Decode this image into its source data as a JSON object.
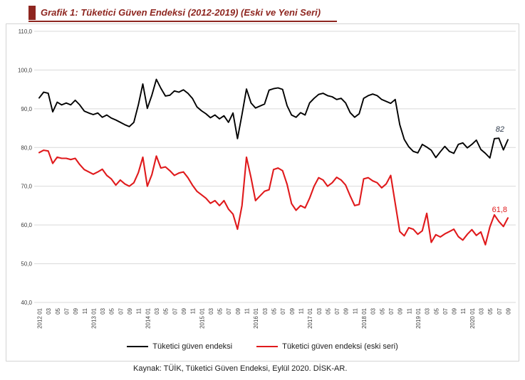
{
  "title": {
    "text": "Grafik 1: Tüketici Güven Endeksi (2012-2019) (Eski ve Yeni Seri)"
  },
  "source": {
    "text": "Kaynak: TÜİK, Tüketici Güven Endeksi, Eylül 2020. DİSK-AR."
  },
  "colors": {
    "title": "#8e2620",
    "axis_text": "#404040",
    "grid": "#d9d9d9",
    "box_border": "#d4d4d4",
    "annotation_new": "#2f3b4c"
  },
  "chart_data": {
    "type": "line",
    "title": "Grafik 1: Tüketici Güven Endeksi (2012-2019) (Eski ve Yeni Seri)",
    "ylim": [
      40,
      110
    ],
    "grid": true,
    "legend_position": "bottom",
    "y_tick_labels": [
      "110,0",
      "100,0",
      "90,0",
      "80,0",
      "70,0",
      "60,0",
      "50,0",
      "40,0"
    ],
    "x_tick_labels": [
      "2012 01",
      "03",
      "05",
      "07",
      "09",
      "11",
      "2013 01",
      "03",
      "05",
      "07",
      "09",
      "11",
      "2014 01",
      "03",
      "05",
      "07",
      "09",
      "11",
      "2015 01",
      "03",
      "05",
      "07",
      "09",
      "11",
      "2016 01",
      "03",
      "05",
      "07",
      "09",
      "11",
      "2017 01",
      "03",
      "05",
      "07",
      "09",
      "11",
      "2018 01",
      "03",
      "05",
      "07",
      "09",
      "11",
      "2019 01",
      "03",
      "05",
      "07",
      "09",
      "11",
      "2020 01",
      "03",
      "05",
      "07",
      "09"
    ],
    "x": [
      "2012-01",
      "2012-02",
      "2012-03",
      "2012-04",
      "2012-05",
      "2012-06",
      "2012-07",
      "2012-08",
      "2012-09",
      "2012-10",
      "2012-11",
      "2012-12",
      "2013-01",
      "2013-02",
      "2013-03",
      "2013-04",
      "2013-05",
      "2013-06",
      "2013-07",
      "2013-08",
      "2013-09",
      "2013-10",
      "2013-11",
      "2013-12",
      "2014-01",
      "2014-02",
      "2014-03",
      "2014-04",
      "2014-05",
      "2014-06",
      "2014-07",
      "2014-08",
      "2014-09",
      "2014-10",
      "2014-11",
      "2014-12",
      "2015-01",
      "2015-02",
      "2015-03",
      "2015-04",
      "2015-05",
      "2015-06",
      "2015-07",
      "2015-08",
      "2015-09",
      "2015-10",
      "2015-11",
      "2015-12",
      "2016-01",
      "2016-02",
      "2016-03",
      "2016-04",
      "2016-05",
      "2016-06",
      "2016-07",
      "2016-08",
      "2016-09",
      "2016-10",
      "2016-11",
      "2016-12",
      "2017-01",
      "2017-02",
      "2017-03",
      "2017-04",
      "2017-05",
      "2017-06",
      "2017-07",
      "2017-08",
      "2017-09",
      "2017-10",
      "2017-11",
      "2017-12",
      "2018-01",
      "2018-02",
      "2018-03",
      "2018-04",
      "2018-05",
      "2018-06",
      "2018-07",
      "2018-08",
      "2018-09",
      "2018-10",
      "2018-11",
      "2018-12",
      "2019-01",
      "2019-02",
      "2019-03",
      "2019-04",
      "2019-05",
      "2019-06",
      "2019-07",
      "2019-08",
      "2019-09",
      "2019-10",
      "2019-11",
      "2019-12",
      "2020-01",
      "2020-02",
      "2020-03",
      "2020-04",
      "2020-05",
      "2020-06",
      "2020-07",
      "2020-08",
      "2020-09"
    ],
    "series": [
      {
        "name": "Tüketici güven endeksi",
        "color": "#000000",
        "last_value_label": "82",
        "values": [
          92.8,
          94.3,
          94.0,
          89.2,
          91.7,
          91.0,
          91.5,
          91.0,
          92.2,
          91.0,
          89.4,
          88.9,
          88.5,
          88.9,
          87.8,
          88.4,
          87.6,
          87.1,
          86.5,
          85.9,
          85.4,
          86.5,
          91.0,
          96.4,
          90.1,
          93.5,
          97.6,
          95.3,
          93.3,
          93.5,
          94.6,
          94.3,
          94.9,
          94.0,
          92.7,
          90.5,
          89.5,
          88.7,
          87.7,
          88.4,
          87.4,
          88.2,
          86.5,
          88.9,
          82.3,
          88.5,
          95.1,
          91.5,
          90.2,
          90.7,
          91.2,
          94.8,
          95.2,
          95.4,
          95.0,
          90.8,
          88.4,
          87.8,
          89.0,
          88.4,
          91.5,
          92.7,
          93.7,
          94.0,
          93.4,
          93.1,
          92.4,
          92.7,
          91.5,
          89.0,
          87.8,
          88.7,
          92.7,
          93.4,
          93.8,
          93.4,
          92.4,
          91.9,
          91.4,
          92.4,
          85.9,
          82.1,
          80.2,
          79.0,
          78.6,
          80.8,
          80.1,
          79.3,
          77.4,
          78.9,
          80.3,
          79.0,
          78.5,
          80.8,
          81.2,
          79.9,
          80.8,
          81.9,
          79.5,
          78.5,
          77.3,
          82.3,
          82.4,
          79.4,
          82.0
        ]
      },
      {
        "name": "Tüketici güven endeksi (eski seri)",
        "color": "#e01a1c",
        "last_value_label": "61,8",
        "values": [
          78.7,
          79.3,
          79.1,
          75.9,
          77.5,
          77.2,
          77.2,
          76.9,
          77.2,
          75.6,
          74.3,
          73.7,
          73.1,
          73.7,
          74.4,
          72.8,
          71.9,
          70.3,
          71.6,
          70.6,
          70.0,
          70.9,
          73.5,
          77.5,
          70.0,
          73.0,
          77.8,
          74.7,
          75.0,
          74.0,
          72.8,
          73.4,
          73.7,
          72.2,
          70.3,
          68.7,
          67.8,
          66.9,
          65.6,
          66.3,
          65.0,
          66.3,
          64.1,
          62.8,
          58.9,
          65.0,
          77.5,
          72.2,
          66.3,
          67.5,
          68.7,
          69.1,
          74.3,
          74.7,
          74.0,
          70.5,
          65.5,
          63.8,
          65.0,
          64.4,
          66.9,
          70.0,
          72.2,
          71.6,
          70.0,
          70.9,
          72.3,
          71.6,
          70.3,
          67.5,
          65.0,
          65.3,
          71.9,
          72.2,
          71.4,
          70.9,
          69.6,
          70.6,
          72.8,
          65.6,
          58.3,
          57.2,
          59.3,
          58.9,
          57.6,
          58.5,
          63.0,
          55.5,
          57.5,
          56.9,
          57.7,
          58.3,
          58.9,
          57.0,
          56.1,
          57.6,
          58.8,
          57.3,
          58.2,
          54.9,
          59.5,
          62.6,
          60.9,
          59.6,
          61.8
        ]
      }
    ]
  }
}
